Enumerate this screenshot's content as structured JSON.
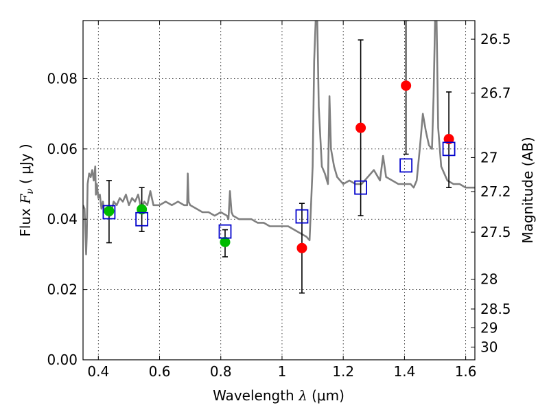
{
  "chart_data": {
    "type": "scatter",
    "xlabel": {
      "main": "Wavelength ",
      "sym": "λ",
      "unit": " (μm)"
    },
    "ylabel": {
      "main": "Flux ",
      "sym": "F",
      "sub": "ν",
      "unit": "  ( μJy )"
    },
    "y2label": "Magnitude (AB)",
    "xlim": [
      0.35,
      1.63
    ],
    "ylim": [
      0.0,
      0.0965
    ],
    "xticks": [
      0.4,
      0.6,
      0.8,
      1.0,
      1.2,
      1.4,
      1.6
    ],
    "xtick_labels": [
      "0.4",
      "0.6",
      "0.8",
      "1",
      "1.2",
      "1.4",
      "1.6"
    ],
    "yticks": [
      0.0,
      0.02,
      0.04,
      0.06,
      0.08
    ],
    "ytick_labels": [
      "0.00",
      "0.02",
      "0.04",
      "0.06",
      "0.08"
    ],
    "y2ticks": [
      {
        "label": "26.5",
        "mag": 26.5
      },
      {
        "label": "26.7",
        "mag": 26.7
      },
      {
        "label": "27",
        "mag": 27.0
      },
      {
        "label": "27.2",
        "mag": 27.2
      },
      {
        "label": "27.5",
        "mag": 27.5
      },
      {
        "label": "28",
        "mag": 28.0
      },
      {
        "label": "28.5",
        "mag": 28.5
      },
      {
        "label": "29",
        "mag": 29.0
      },
      {
        "label": "30",
        "mag": 30.0
      }
    ],
    "grid": true,
    "colors": {
      "model_spectrum": "#7f7f7f",
      "green_points": "#00bb00",
      "red_points": "#ff0000",
      "squares": "#0000cc",
      "errorbars": "#000000"
    },
    "model_spectrum": {
      "x": [
        0.35,
        0.355,
        0.36,
        0.362,
        0.365,
        0.37,
        0.375,
        0.38,
        0.385,
        0.39,
        0.392,
        0.395,
        0.4,
        0.405,
        0.41,
        0.415,
        0.42,
        0.43,
        0.44,
        0.45,
        0.46,
        0.47,
        0.48,
        0.49,
        0.5,
        0.51,
        0.52,
        0.53,
        0.54,
        0.55,
        0.56,
        0.57,
        0.58,
        0.6,
        0.62,
        0.64,
        0.66,
        0.68,
        0.69,
        0.692,
        0.695,
        0.7,
        0.72,
        0.74,
        0.76,
        0.78,
        0.8,
        0.82,
        0.825,
        0.83,
        0.835,
        0.84,
        0.86,
        0.88,
        0.9,
        0.92,
        0.94,
        0.96,
        0.98,
        1.0,
        1.02,
        1.04,
        1.06,
        1.08,
        1.09,
        1.1,
        1.105,
        1.11,
        1.115,
        1.12,
        1.13,
        1.14,
        1.15,
        1.155,
        1.16,
        1.17,
        1.18,
        1.19,
        1.2,
        1.22,
        1.24,
        1.26,
        1.28,
        1.3,
        1.32,
        1.33,
        1.34,
        1.36,
        1.38,
        1.4,
        1.42,
        1.43,
        1.44,
        1.45,
        1.46,
        1.47,
        1.48,
        1.49,
        1.495,
        1.5,
        1.505,
        1.51,
        1.52,
        1.53,
        1.54,
        1.56,
        1.58,
        1.6,
        1.62,
        1.63
      ],
      "y": [
        0.044,
        0.043,
        0.03,
        0.035,
        0.05,
        0.053,
        0.052,
        0.054,
        0.051,
        0.055,
        0.047,
        0.05,
        0.046,
        0.047,
        0.043,
        0.045,
        0.042,
        0.043,
        0.041,
        0.045,
        0.044,
        0.046,
        0.045,
        0.047,
        0.044,
        0.046,
        0.045,
        0.047,
        0.043,
        0.045,
        0.044,
        0.048,
        0.044,
        0.044,
        0.045,
        0.044,
        0.045,
        0.044,
        0.044,
        0.053,
        0.045,
        0.044,
        0.043,
        0.042,
        0.042,
        0.041,
        0.042,
        0.041,
        0.04,
        0.048,
        0.042,
        0.041,
        0.04,
        0.04,
        0.04,
        0.039,
        0.039,
        0.038,
        0.038,
        0.038,
        0.038,
        0.037,
        0.036,
        0.035,
        0.034,
        0.055,
        0.085,
        0.0965,
        0.0965,
        0.072,
        0.055,
        0.053,
        0.05,
        0.075,
        0.06,
        0.055,
        0.052,
        0.051,
        0.05,
        0.051,
        0.05,
        0.05,
        0.052,
        0.054,
        0.051,
        0.058,
        0.052,
        0.051,
        0.05,
        0.05,
        0.05,
        0.049,
        0.051,
        0.06,
        0.07,
        0.065,
        0.061,
        0.06,
        0.075,
        0.0965,
        0.0965,
        0.066,
        0.055,
        0.053,
        0.051,
        0.05,
        0.05,
        0.049,
        0.049,
        0.049
      ]
    },
    "series": [
      {
        "marker": "filled-circle",
        "color": "green",
        "points": [
          {
            "x": 0.435,
            "y": 0.0423,
            "yerr_low": 0.0333,
            "yerr_high": 0.051
          },
          {
            "x": 0.542,
            "y": 0.0428,
            "yerr_low": 0.0365,
            "yerr_high": 0.049
          },
          {
            "x": 0.814,
            "y": 0.0335,
            "yerr_low": 0.0293,
            "yerr_high": 0.037
          }
        ]
      },
      {
        "marker": "filled-circle",
        "color": "red",
        "points": [
          {
            "x": 1.065,
            "y": 0.0318,
            "yerr_low": 0.019,
            "yerr_high": 0.0445
          },
          {
            "x": 1.257,
            "y": 0.066,
            "yerr_low": 0.041,
            "yerr_high": 0.091
          },
          {
            "x": 1.405,
            "y": 0.078,
            "yerr_low": 0.0585,
            "yerr_high": 0.0965
          },
          {
            "x": 1.545,
            "y": 0.0628,
            "yerr_low": 0.049,
            "yerr_high": 0.0762
          }
        ]
      },
      {
        "marker": "open-square",
        "color": "blue",
        "points": [
          {
            "x": 0.435,
            "y": 0.042
          },
          {
            "x": 0.542,
            "y": 0.04
          },
          {
            "x": 0.814,
            "y": 0.0365
          },
          {
            "x": 1.065,
            "y": 0.0408
          },
          {
            "x": 1.257,
            "y": 0.049
          },
          {
            "x": 1.405,
            "y": 0.0553
          },
          {
            "x": 1.545,
            "y": 0.06
          }
        ]
      }
    ]
  }
}
